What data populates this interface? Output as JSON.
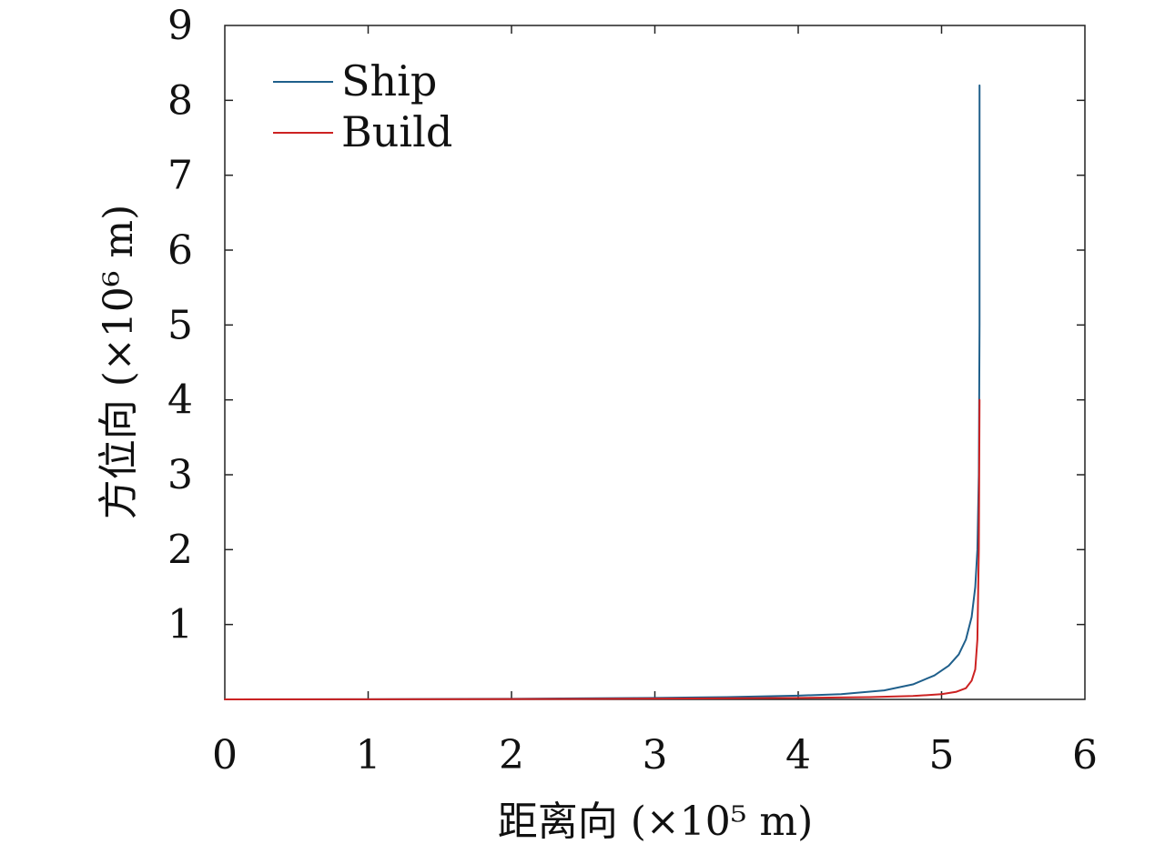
{
  "chart_data": {
    "type": "line",
    "xlabel": "距离向 (×10⁵ m)",
    "ylabel": "方位向 (×10⁶ m)",
    "xlim": [
      0,
      6
    ],
    "ylim": [
      0,
      9
    ],
    "x_ticks": [
      "0",
      "1",
      "2",
      "3",
      "4",
      "5",
      "6"
    ],
    "y_ticks": [
      "1",
      "2",
      "3",
      "4",
      "5",
      "6",
      "7",
      "8",
      "9"
    ],
    "grid": false,
    "legend_position": "top-left",
    "series": [
      {
        "name": "Ship",
        "color": "#1f5f8b",
        "x": [
          0,
          1,
          2,
          3,
          3.5,
          4,
          4.3,
          4.6,
          4.8,
          4.95,
          5.05,
          5.12,
          5.17,
          5.21,
          5.235,
          5.25,
          5.26,
          5.265,
          5.265
        ],
        "y": [
          0,
          0.002,
          0.008,
          0.02,
          0.03,
          0.05,
          0.07,
          0.12,
          0.2,
          0.32,
          0.45,
          0.6,
          0.8,
          1.1,
          1.5,
          2.0,
          3.0,
          5.0,
          8.2
        ]
      },
      {
        "name": "Build",
        "color": "#cc2222",
        "x": [
          0,
          1,
          2,
          3,
          4,
          4.5,
          4.8,
          5.0,
          5.1,
          5.17,
          5.21,
          5.235,
          5.25,
          5.26,
          5.265
        ],
        "y": [
          0,
          0.001,
          0.004,
          0.01,
          0.02,
          0.03,
          0.045,
          0.07,
          0.1,
          0.15,
          0.25,
          0.4,
          0.8,
          2.0,
          4.0
        ]
      }
    ]
  }
}
